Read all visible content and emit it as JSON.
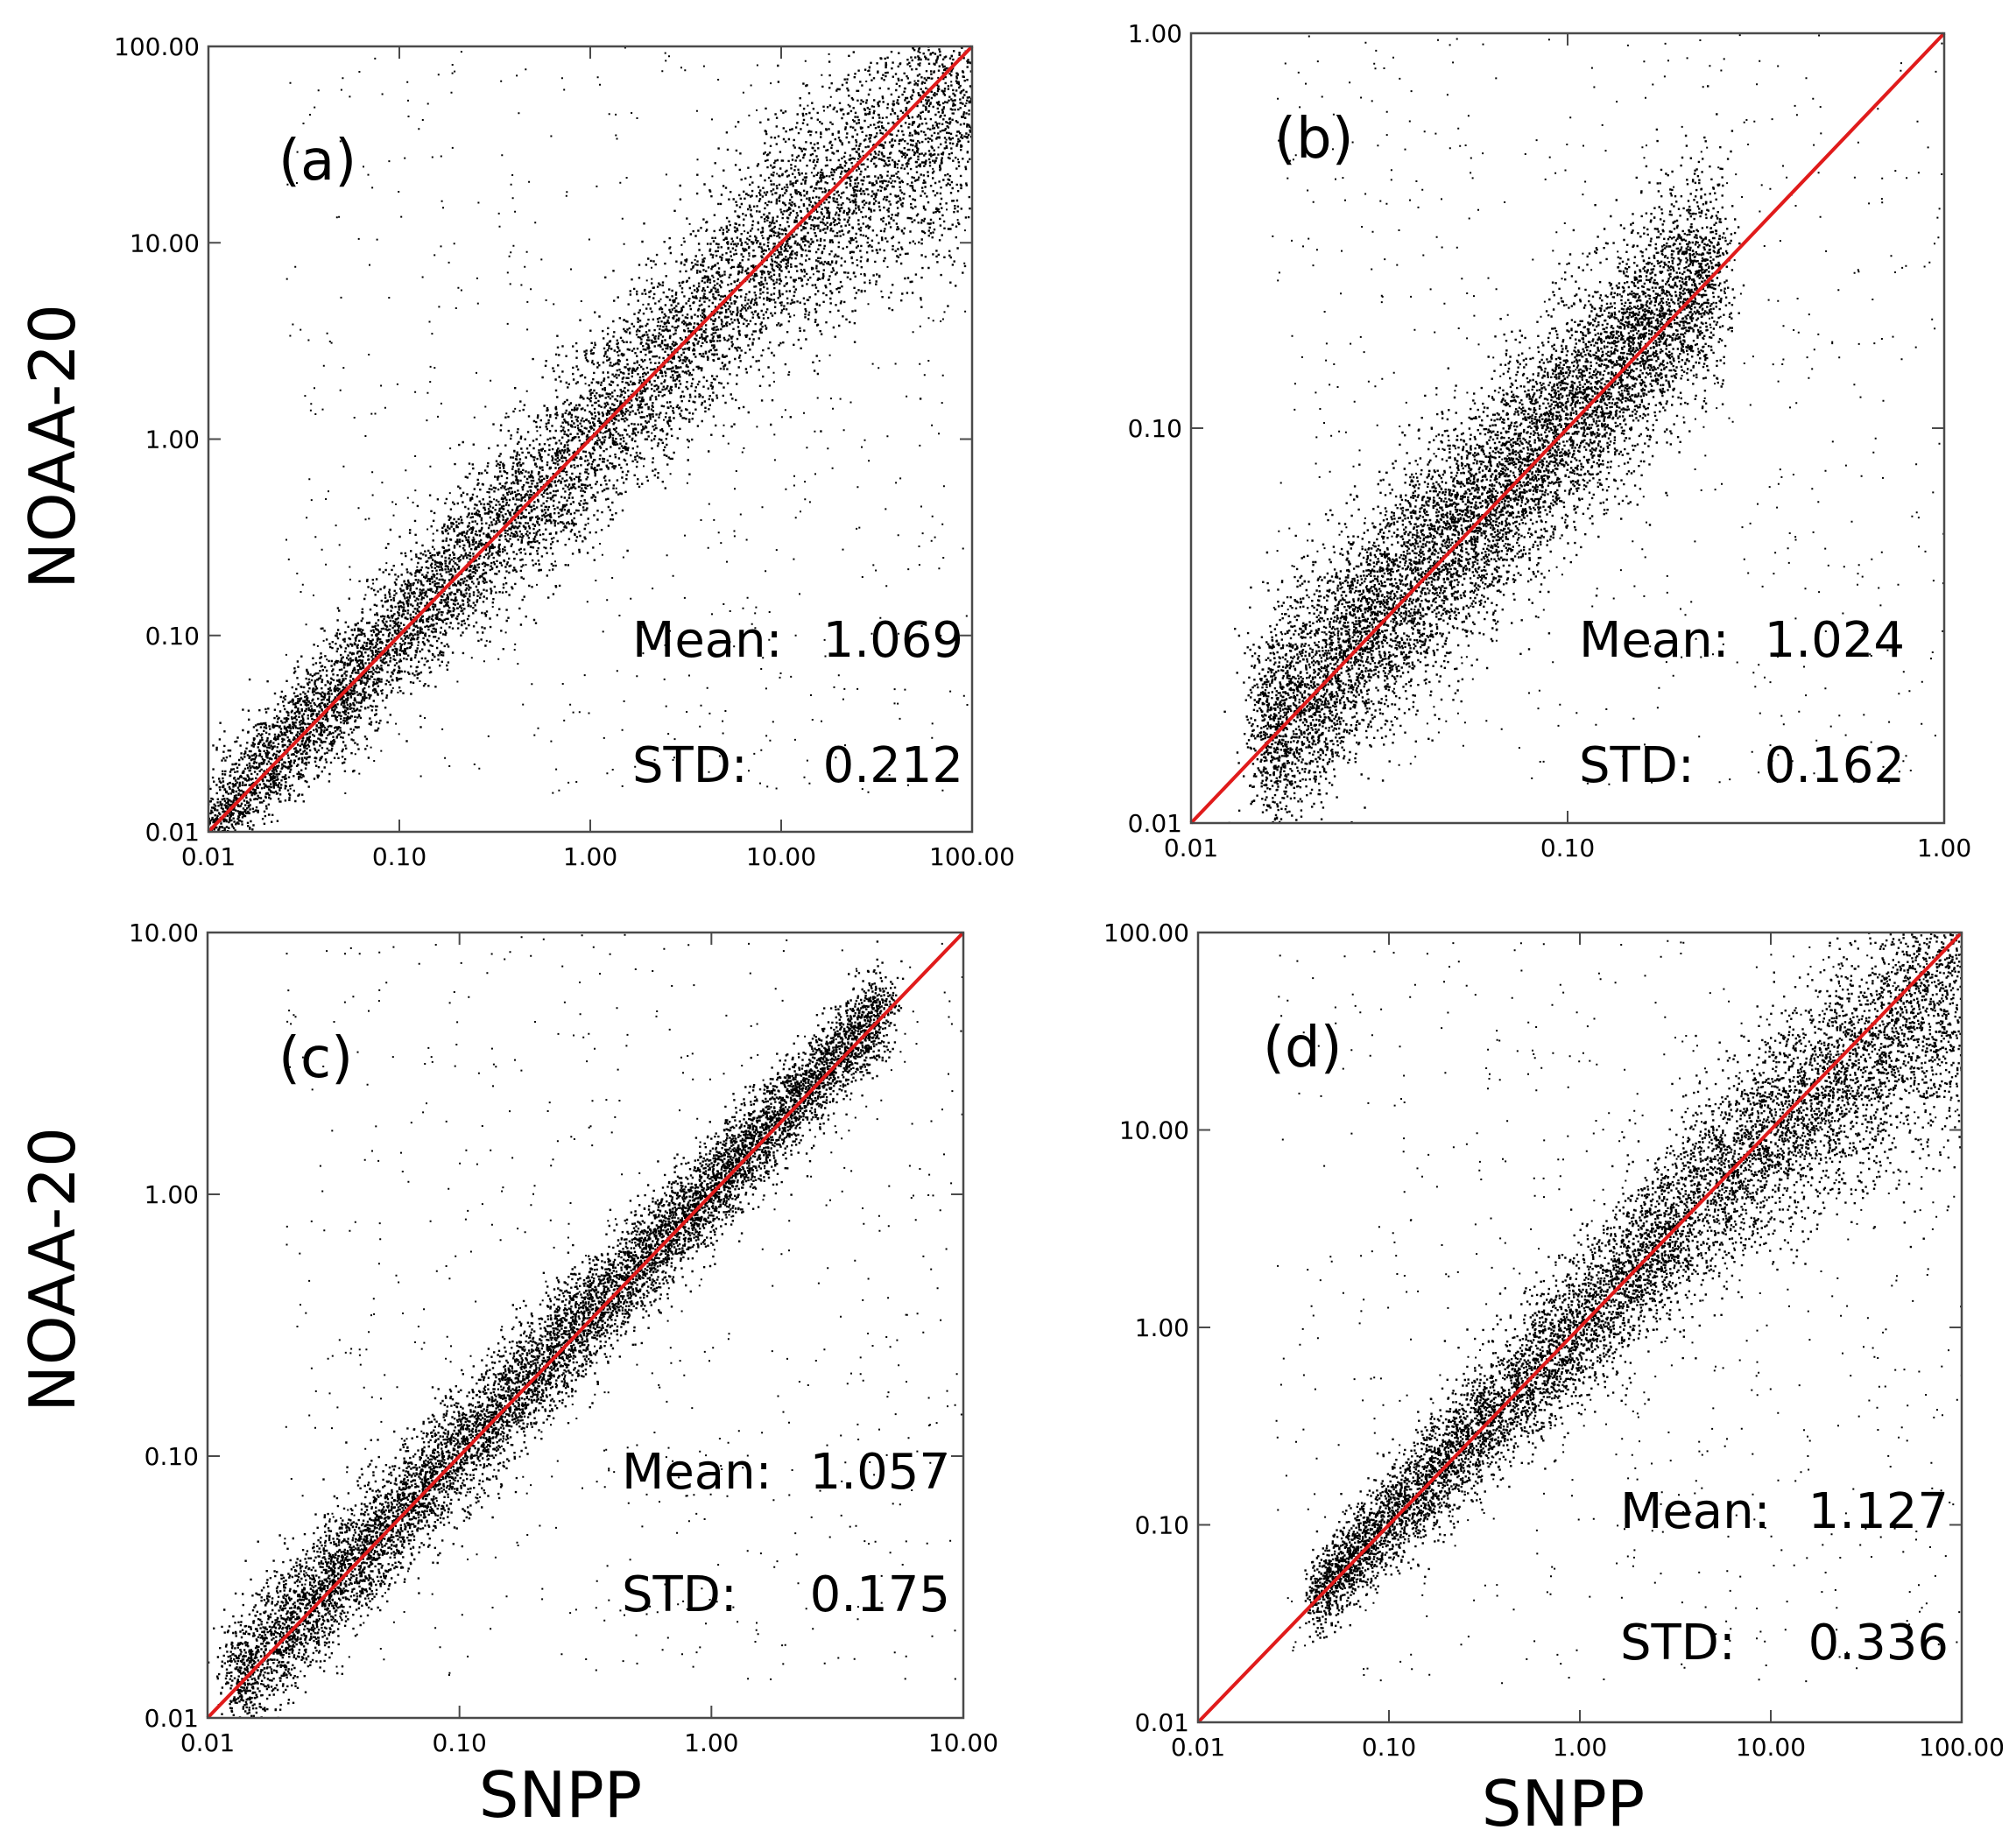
{
  "colors": {
    "points": "#000000",
    "fit_line": "#e01b1b",
    "frame": "#4a4a4a"
  },
  "axis_titles": {
    "y": "NOAA-20",
    "x": "SNPP"
  },
  "chart_data": [
    {
      "type": "scatter",
      "panel_label": "(a)",
      "xscale": "log",
      "yscale": "log",
      "xlim": [
        0.01,
        100
      ],
      "ylim": [
        0.01,
        100
      ],
      "xticks": [
        "0.01",
        "0.10",
        "1.00",
        "10.00",
        "100.00"
      ],
      "yticks": [
        "0.01",
        "0.10",
        "1.00",
        "10.00",
        "100.00"
      ],
      "xlabel": "",
      "ylabel": "NOAA-20",
      "reference_line": "y = x",
      "mean_label": "Mean:",
      "mean_value": "1.069",
      "std_label": "STD:",
      "std_value": "0.212",
      "point_cloud": {
        "from": 0.01,
        "to": 100,
        "density_spread_low": 0.12,
        "density_spread_high": 0.35,
        "scatter_above": 10
      },
      "grid": false,
      "legend": "none"
    },
    {
      "type": "scatter",
      "panel_label": "(b)",
      "xscale": "log",
      "yscale": "log",
      "xlim": [
        0.01,
        1
      ],
      "ylim": [
        0.01,
        1
      ],
      "xticks": [
        "0.01",
        "0.10",
        "1.00"
      ],
      "yticks": [
        "0.01",
        "0.10",
        "1.00"
      ],
      "xlabel": "",
      "ylabel": "",
      "reference_line": "y = x",
      "mean_label": "Mean:",
      "mean_value": "1.024",
      "std_label": "STD:",
      "std_value": "0.162",
      "point_cloud": {
        "from": 0.015,
        "to": 0.25,
        "density_spread_low": 0.14,
        "density_spread_high": 0.14,
        "scatter_above": 1
      },
      "grid": false,
      "legend": "none"
    },
    {
      "type": "scatter",
      "panel_label": "(c)",
      "xscale": "log",
      "yscale": "log",
      "xlim": [
        0.01,
        10
      ],
      "ylim": [
        0.01,
        10
      ],
      "xticks": [
        "0.01",
        "0.10",
        "1.00",
        "10.00"
      ],
      "yticks": [
        "0.01",
        "0.10",
        "1.00",
        "10.00"
      ],
      "xlabel": "SNPP",
      "ylabel": "NOAA-20",
      "reference_line": "y = x",
      "mean_label": "Mean:",
      "mean_value": "1.057",
      "std_label": "STD:",
      "std_value": "0.175",
      "point_cloud": {
        "from": 0.012,
        "to": 5,
        "density_spread_low": 0.13,
        "density_spread_high": 0.08,
        "scatter_above": 10
      },
      "grid": false,
      "legend": "none"
    },
    {
      "type": "scatter",
      "panel_label": "(d)",
      "xscale": "log",
      "yscale": "log",
      "xlim": [
        0.01,
        100
      ],
      "ylim": [
        0.01,
        100
      ],
      "xticks": [
        "0.01",
        "0.10",
        "1.00",
        "10.00",
        "100.00"
      ],
      "yticks": [
        "0.01",
        "0.10",
        "1.00",
        "10.00",
        "100.00"
      ],
      "xlabel": "SNPP",
      "ylabel": "",
      "reference_line": "y = x",
      "mean_label": "Mean:",
      "mean_value": "1.127",
      "std_label": "STD:",
      "std_value": "0.336",
      "point_cloud": {
        "from": 0.04,
        "to": 100,
        "density_spread_low": 0.1,
        "density_spread_high": 0.33,
        "scatter_above": 8
      },
      "grid": false,
      "legend": "none"
    }
  ]
}
